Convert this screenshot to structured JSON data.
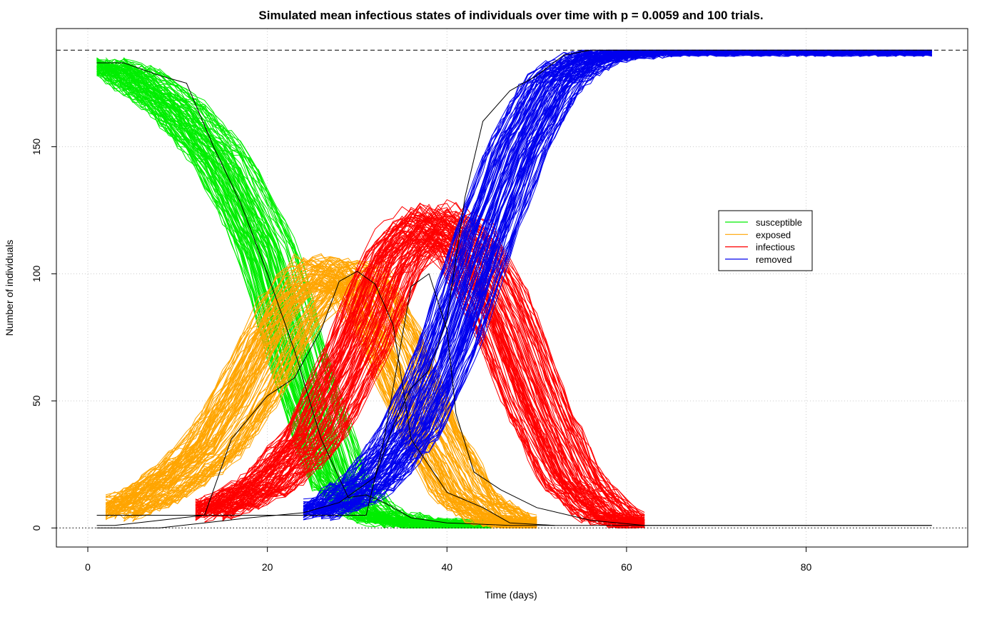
{
  "chart_data": {
    "type": "line",
    "title": "Simulated mean infectious states of individuals over time with p = 0.0059 and 100 trials.",
    "xlabel": "Time (days)",
    "ylabel": "Number of individuals",
    "xlim": [
      -3.5,
      98
    ],
    "ylim": [
      -7.5,
      196.5
    ],
    "x_ticks": [
      0,
      20,
      40,
      60,
      80
    ],
    "y_ticks": [
      0,
      50,
      100,
      150
    ],
    "grid": "dotted",
    "total_population": 188,
    "reference_lines": [
      {
        "y": 188,
        "style": "dashed"
      },
      {
        "y": 0,
        "style": "dotted"
      }
    ],
    "trials_per_state": 100,
    "legend": {
      "position": "right",
      "entries": [
        {
          "label": "susceptible",
          "color": "#00ee00"
        },
        {
          "label": "exposed",
          "color": "#ffa500"
        },
        {
          "label": "infectious",
          "color": "#ff0000"
        },
        {
          "label": "removed",
          "color": "#0000ee"
        }
      ]
    },
    "series": [
      {
        "name": "susceptible",
        "color": "#00ee00",
        "x": [
          1,
          5,
          10,
          15,
          20,
          24,
          28,
          32,
          36,
          40,
          45
        ],
        "y": [
          183,
          178,
          165,
          145,
          110,
          60,
          18,
          5,
          2,
          1,
          1
        ],
        "spread_days": 3.5
      },
      {
        "name": "exposed",
        "color": "#ffa500",
        "x": [
          2,
          6,
          10,
          14,
          18,
          22,
          26,
          30,
          34,
          38,
          42,
          46,
          50
        ],
        "y": [
          5,
          11,
          20,
          32,
          55,
          82,
          100,
          98,
          72,
          38,
          12,
          3,
          1
        ],
        "spread_days": 3.5
      },
      {
        "name": "infectious",
        "color": "#ff0000",
        "x": [
          12,
          16,
          20,
          25,
          30,
          34,
          38,
          42,
          46,
          50,
          54,
          58,
          62
        ],
        "y": [
          5,
          10,
          17,
          35,
          70,
          105,
          120,
          112,
          85,
          48,
          18,
          5,
          1
        ],
        "spread_days": 3.5
      },
      {
        "name": "removed",
        "color": "#0000ee",
        "x": [
          24,
          28,
          32,
          36,
          40,
          44,
          48,
          52,
          56,
          60,
          64,
          94
        ],
        "y": [
          5,
          10,
          20,
          38,
          70,
          112,
          150,
          176,
          185,
          187,
          188,
          188
        ],
        "spread_days": 3.5
      },
      {
        "name": "",
        "color": "#000000",
        "part": "s",
        "x": [
          1,
          4,
          8,
          11,
          14,
          17,
          20,
          23,
          26,
          29,
          31,
          33,
          36,
          40,
          47,
          60,
          94
        ],
        "y": [
          183,
          183,
          178,
          175,
          150,
          128,
          100,
          70,
          35,
          12,
          13,
          10,
          4,
          2,
          1,
          1,
          1
        ]
      },
      {
        "name": "",
        "color": "#000000",
        "part": "e",
        "x": [
          1,
          3,
          8,
          13,
          16,
          20,
          23,
          26,
          28,
          30,
          32,
          34,
          36,
          40,
          44,
          47,
          52
        ],
        "y": [
          1,
          1,
          3,
          5,
          35,
          52,
          59,
          78,
          97,
          101,
          96,
          80,
          35,
          14,
          8,
          2,
          1
        ]
      },
      {
        "name": "",
        "color": "#000000",
        "part": "i",
        "x": [
          1,
          8,
          10,
          16,
          22,
          26,
          28,
          31,
          33,
          36,
          38,
          40,
          41,
          43,
          46,
          50,
          56,
          62,
          70,
          94
        ],
        "y": [
          5,
          5,
          5,
          5,
          5,
          5,
          5,
          5,
          35,
          95,
          100,
          78,
          45,
          22,
          15,
          8,
          3,
          1,
          1,
          1
        ]
      },
      {
        "name": "",
        "color": "#000000",
        "part": "r",
        "x": [
          1,
          8,
          13,
          18,
          24,
          28,
          32,
          34,
          36,
          38,
          40,
          42,
          44,
          47,
          50,
          53,
          56,
          64,
          94
        ],
        "y": [
          0,
          0,
          2,
          4,
          6,
          10,
          20,
          40,
          55,
          62,
          82,
          130,
          160,
          172,
          178,
          186,
          188,
          188,
          188
        ]
      }
    ]
  }
}
